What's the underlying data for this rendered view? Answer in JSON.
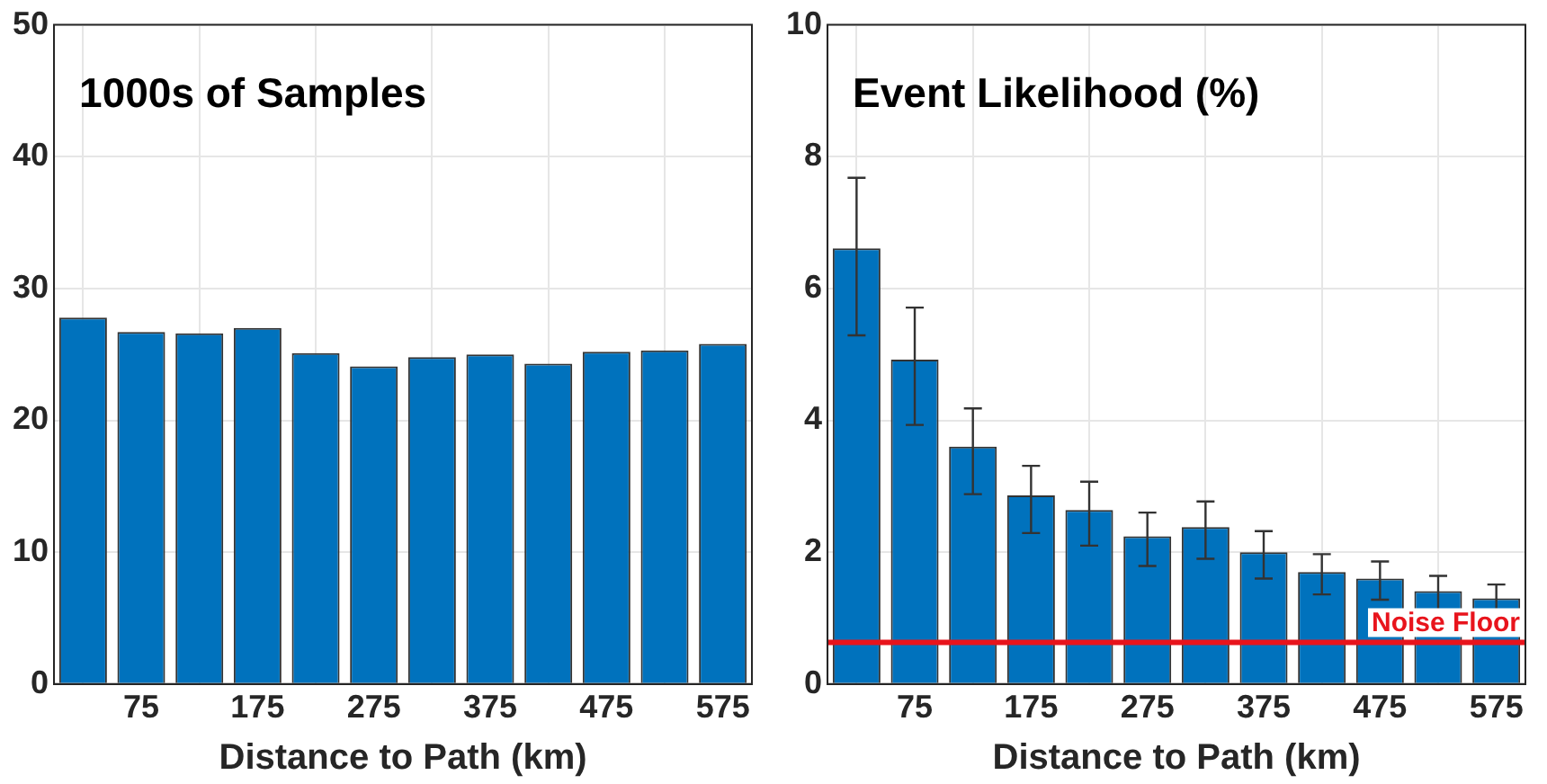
{
  "chart_data": [
    {
      "type": "bar",
      "title": "1000s of Samples",
      "xlabel": "Distance to Path (km)",
      "x": [
        25,
        75,
        125,
        175,
        225,
        275,
        325,
        375,
        425,
        475,
        525,
        575
      ],
      "xlim": [
        0,
        600
      ],
      "xticks": [
        75,
        175,
        275,
        375,
        475,
        575
      ],
      "ylim": [
        0,
        50
      ],
      "yticks": [
        0,
        10,
        20,
        30,
        40,
        50
      ],
      "grid": true,
      "legend": false,
      "series": [
        {
          "color": "#0072bd",
          "values": [
            27.8,
            26.7,
            26.6,
            27.0,
            25.1,
            24.1,
            24.8,
            25.0,
            24.3,
            25.2,
            25.3,
            25.8
          ]
        }
      ]
    },
    {
      "type": "bar",
      "title": "Event Likelihood (%)",
      "xlabel": "Distance to Path (km)",
      "x": [
        25,
        75,
        125,
        175,
        225,
        275,
        325,
        375,
        425,
        475,
        525,
        575
      ],
      "xlim": [
        0,
        600
      ],
      "xticks": [
        75,
        175,
        275,
        375,
        475,
        575
      ],
      "ylim": [
        0,
        10
      ],
      "yticks": [
        0,
        2,
        4,
        6,
        8,
        10
      ],
      "grid": true,
      "legend": false,
      "series": [
        {
          "color": "#0072bd",
          "values": [
            6.61,
            4.92,
            3.6,
            2.86,
            2.64,
            2.24,
            2.38,
            2.0,
            1.7,
            1.6,
            1.41,
            1.3
          ],
          "errors": [
            [
              5.29,
              7.68
            ],
            [
              3.93,
              5.71
            ],
            [
              2.88,
              4.18
            ],
            [
              2.29,
              3.31
            ],
            [
              2.1,
              3.07
            ],
            [
              1.79,
              2.6
            ],
            [
              1.9,
              2.77
            ],
            [
              1.6,
              2.32
            ],
            [
              1.36,
              1.97
            ],
            [
              1.28,
              1.86
            ],
            [
              1.09,
              1.64
            ],
            [
              1.01,
              1.51
            ]
          ]
        }
      ],
      "ref_lines": [
        {
          "axis": "y",
          "value": 0.63,
          "label": "Noise Floor",
          "color": "#e8141c"
        }
      ]
    }
  ]
}
